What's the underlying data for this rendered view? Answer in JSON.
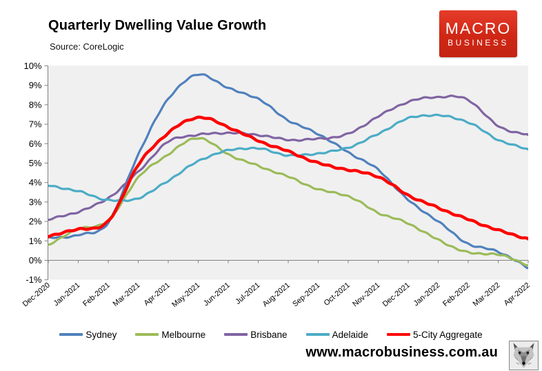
{
  "header": {
    "title": "Quarterly Dwelling Value Growth",
    "source": "Source: CoreLogic",
    "logo_line1": "MACRO",
    "logo_line2": "BUSINESS",
    "logo_bg": "#D02715"
  },
  "footer": {
    "website": "www.macrobusiness.com.au"
  },
  "chart_data": {
    "type": "line",
    "title": "Quarterly Dwelling Value Growth",
    "subtitle": "Source: CoreLogic",
    "unit": "%",
    "ylim": [
      -1,
      10
    ],
    "y_tick_labels": [
      "10%",
      "9%",
      "8%",
      "7%",
      "6%",
      "5%",
      "4%",
      "3%",
      "2%",
      "1%",
      "0%",
      "-1%"
    ],
    "y_tick_values": [
      10,
      9,
      8,
      7,
      6,
      5,
      4,
      3,
      2,
      1,
      0,
      -1
    ],
    "x_labels": [
      "Dec-2020",
      "Jan-2021",
      "Feb-2021",
      "Mar-2021",
      "Apr-2021",
      "May-2021",
      "Jun-2021",
      "Jul-2021",
      "Aug-2021",
      "Sep-2021",
      "Oct-2021",
      "Nov-2021",
      "Dec-2021",
      "Jan-2022",
      "Feb-2022",
      "Mar-2022",
      "Apr-2022"
    ],
    "grid": "zero-line-only",
    "plot_bg": "#F0F0F0",
    "axis_color": "#808080",
    "legend_position": "bottom",
    "series": [
      {
        "name": "Sydney",
        "color": "#4F81BD",
        "width": 3.2,
        "values": [
          1.15,
          1.3,
          1.95,
          5.45,
          8.3,
          9.55,
          8.85,
          8.3,
          7.2,
          6.5,
          5.55,
          4.65,
          3.1,
          2.0,
          0.85,
          0.45,
          -0.4
        ]
      },
      {
        "name": "Melbourne",
        "color": "#9BBB59",
        "width": 3.2,
        "values": [
          0.8,
          1.6,
          2.05,
          4.25,
          5.45,
          6.3,
          5.45,
          4.85,
          4.3,
          3.65,
          3.3,
          2.45,
          1.9,
          1.05,
          0.4,
          0.3,
          -0.25
        ]
      },
      {
        "name": "Brisbane",
        "color": "#8064A2",
        "width": 3.2,
        "values": [
          2.1,
          2.5,
          3.2,
          4.55,
          6.1,
          6.45,
          6.55,
          6.45,
          6.2,
          6.25,
          6.5,
          7.4,
          8.15,
          8.4,
          8.25,
          6.9,
          6.45
        ]
      },
      {
        "name": "Adelaide",
        "color": "#4BACC6",
        "width": 3.2,
        "values": [
          3.85,
          3.55,
          3.1,
          3.2,
          4.1,
          5.1,
          5.65,
          5.75,
          5.4,
          5.5,
          5.8,
          6.5,
          7.3,
          7.45,
          7.1,
          6.2,
          5.7
        ]
      },
      {
        "name": "5-City Aggregate",
        "color": "#FF0000",
        "width": 4.4,
        "values": [
          1.25,
          1.6,
          2.0,
          4.9,
          6.55,
          7.35,
          6.85,
          6.15,
          5.6,
          5.0,
          4.65,
          4.3,
          3.35,
          2.7,
          2.1,
          1.55,
          1.1
        ]
      }
    ]
  }
}
